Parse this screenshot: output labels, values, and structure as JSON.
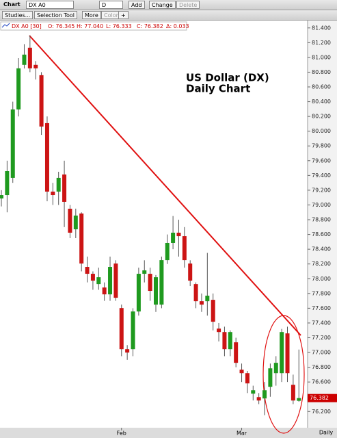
{
  "toolbar": {
    "chart": "Chart",
    "symbol": "DX A0",
    "period": "D",
    "add": "Add",
    "change": "Change",
    "delete": "Delete",
    "studies": "Studies...",
    "selection": "Selection Tool",
    "more": "More",
    "color": "Color",
    "plus": "+"
  },
  "chart_data": {
    "type": "candlestick",
    "title": [
      "US Dollar (DX)",
      "Daily Chart"
    ],
    "legend_items": [
      "DX A0 [30]",
      "O: 76.345",
      "H: 77.040",
      "L: 76.333",
      "C: 76.382",
      "Δ: 0.033"
    ],
    "xlabel": "Daily",
    "up_color": "#1f9a1f",
    "down_color": "#cc1414",
    "categories": [
      null,
      null,
      null,
      null,
      null,
      null,
      null,
      null,
      null,
      null,
      null,
      null,
      null,
      null,
      null,
      null,
      null,
      null,
      null,
      null,
      null,
      "Feb",
      null,
      null,
      null,
      null,
      null,
      null,
      null,
      null,
      null,
      null,
      null,
      null,
      null,
      null,
      null,
      null,
      null,
      null,
      null,
      null,
      "Mar",
      null,
      null,
      null,
      null,
      null,
      null,
      null,
      null,
      null,
      null
    ],
    "open": [
      79.088,
      79.134,
      79.367,
      80.295,
      80.899,
      81.131,
      80.899,
      80.759,
      80.109,
      79.181,
      79.181,
      79.413,
      78.949,
      78.67,
      78.884,
      78.16,
      78.067,
      77.927,
      77.881,
      77.788,
      78.206,
      77.602,
      77.045,
      77.045,
      77.556,
      78.067,
      78.067,
      77.649,
      77.649,
      78.252,
      78.485,
      78.624,
      78.577,
      78.206,
      77.927,
      77.695,
      77.695,
      77.714,
      77.324,
      77.277,
      77.045,
      77.138,
      76.767,
      76.72,
      76.442,
      76.395,
      76.377,
      76.535,
      76.72,
      76.72,
      77.259,
      76.562,
      76.345
    ],
    "high": [
      79.2,
      79.6,
      80.4,
      80.99,
      81.18,
      81.3,
      80.95,
      80.8,
      80.2,
      79.3,
      79.45,
      79.6,
      79.0,
      78.95,
      78.9,
      78.3,
      78.1,
      78.15,
      77.95,
      78.3,
      78.25,
      77.65,
      77.1,
      77.6,
      78.15,
      78.25,
      78.15,
      78.05,
      78.3,
      78.6,
      78.85,
      78.8,
      78.7,
      78.25,
      77.95,
      77.8,
      78.35,
      77.8,
      77.4,
      77.35,
      77.3,
      77.2,
      76.85,
      76.75,
      76.55,
      76.45,
      76.6,
      76.85,
      76.95,
      77.32,
      77.35,
      76.7,
      77.04
    ],
    "low": [
      78.98,
      78.9,
      79.3,
      80.2,
      80.85,
      80.8,
      80.7,
      79.95,
      79.05,
      79.0,
      79.0,
      78.7,
      78.55,
      78.55,
      78.1,
      77.95,
      77.85,
      77.85,
      77.7,
      77.7,
      77.7,
      76.95,
      76.9,
      76.95,
      77.5,
      77.95,
      77.7,
      77.55,
      77.6,
      78.2,
      78.4,
      78.3,
      78.15,
      77.9,
      77.6,
      77.55,
      77.5,
      77.3,
      77.15,
      76.95,
      76.95,
      76.8,
      76.6,
      76.45,
      76.35,
      76.3,
      76.15,
      76.4,
      76.55,
      76.6,
      76.6,
      76.3,
      76.333
    ],
    "close": [
      79.134,
      79.459,
      80.295,
      80.852,
      81.038,
      80.852,
      80.852,
      80.063,
      79.181,
      79.134,
      79.367,
      79.042,
      78.624,
      78.856,
      78.206,
      78.067,
      77.974,
      78.02,
      77.788,
      78.16,
      77.742,
      77.045,
      76.999,
      77.556,
      78.067,
      78.113,
      77.835,
      78.02,
      78.252,
      78.485,
      78.624,
      78.577,
      78.252,
      77.974,
      77.695,
      77.649,
      77.77,
      77.417,
      77.277,
      77.045,
      77.277,
      76.86,
      76.72,
      76.581,
      76.488,
      76.349,
      76.488,
      76.785,
      76.86,
      77.277,
      76.72,
      76.349,
      76.382
    ],
    "ylim": [
      75.98,
      81.5
    ],
    "yticks": [
      {
        "value": 81.4,
        "label": "81.400"
      },
      {
        "value": 81.2,
        "label": "81.200"
      },
      {
        "value": 81.0,
        "label": "81.000"
      },
      {
        "value": 80.8,
        "label": "80.800"
      },
      {
        "value": 80.6,
        "label": "80.600"
      },
      {
        "value": 80.4,
        "label": "80.400"
      },
      {
        "value": 80.2,
        "label": "80.200"
      },
      {
        "value": 80.0,
        "label": "80.000"
      },
      {
        "value": 79.8,
        "label": "79.800"
      },
      {
        "value": 79.6,
        "label": "79.600"
      },
      {
        "value": 79.4,
        "label": "79.400"
      },
      {
        "value": 79.2,
        "label": "79.200"
      },
      {
        "value": 79.0,
        "label": "79.000"
      },
      {
        "value": 78.8,
        "label": "78.800"
      },
      {
        "value": 78.6,
        "label": "78.600"
      },
      {
        "value": 78.4,
        "label": "78.400"
      },
      {
        "value": 78.2,
        "label": "78.200"
      },
      {
        "value": 78.0,
        "label": "78.000"
      },
      {
        "value": 77.8,
        "label": "77.800"
      },
      {
        "value": 77.6,
        "label": "77.600"
      },
      {
        "value": 77.4,
        "label": "77.400"
      },
      {
        "value": 77.2,
        "label": "77.200"
      },
      {
        "value": 77.0,
        "label": "77.000"
      },
      {
        "value": 76.8,
        "label": "76.800"
      },
      {
        "value": 76.6,
        "label": "76.600"
      },
      {
        "value": 76.4,
        "label": "76.400"
      },
      {
        "value": 76.2,
        "label": "76.200"
      }
    ],
    "grid": false
  }
}
